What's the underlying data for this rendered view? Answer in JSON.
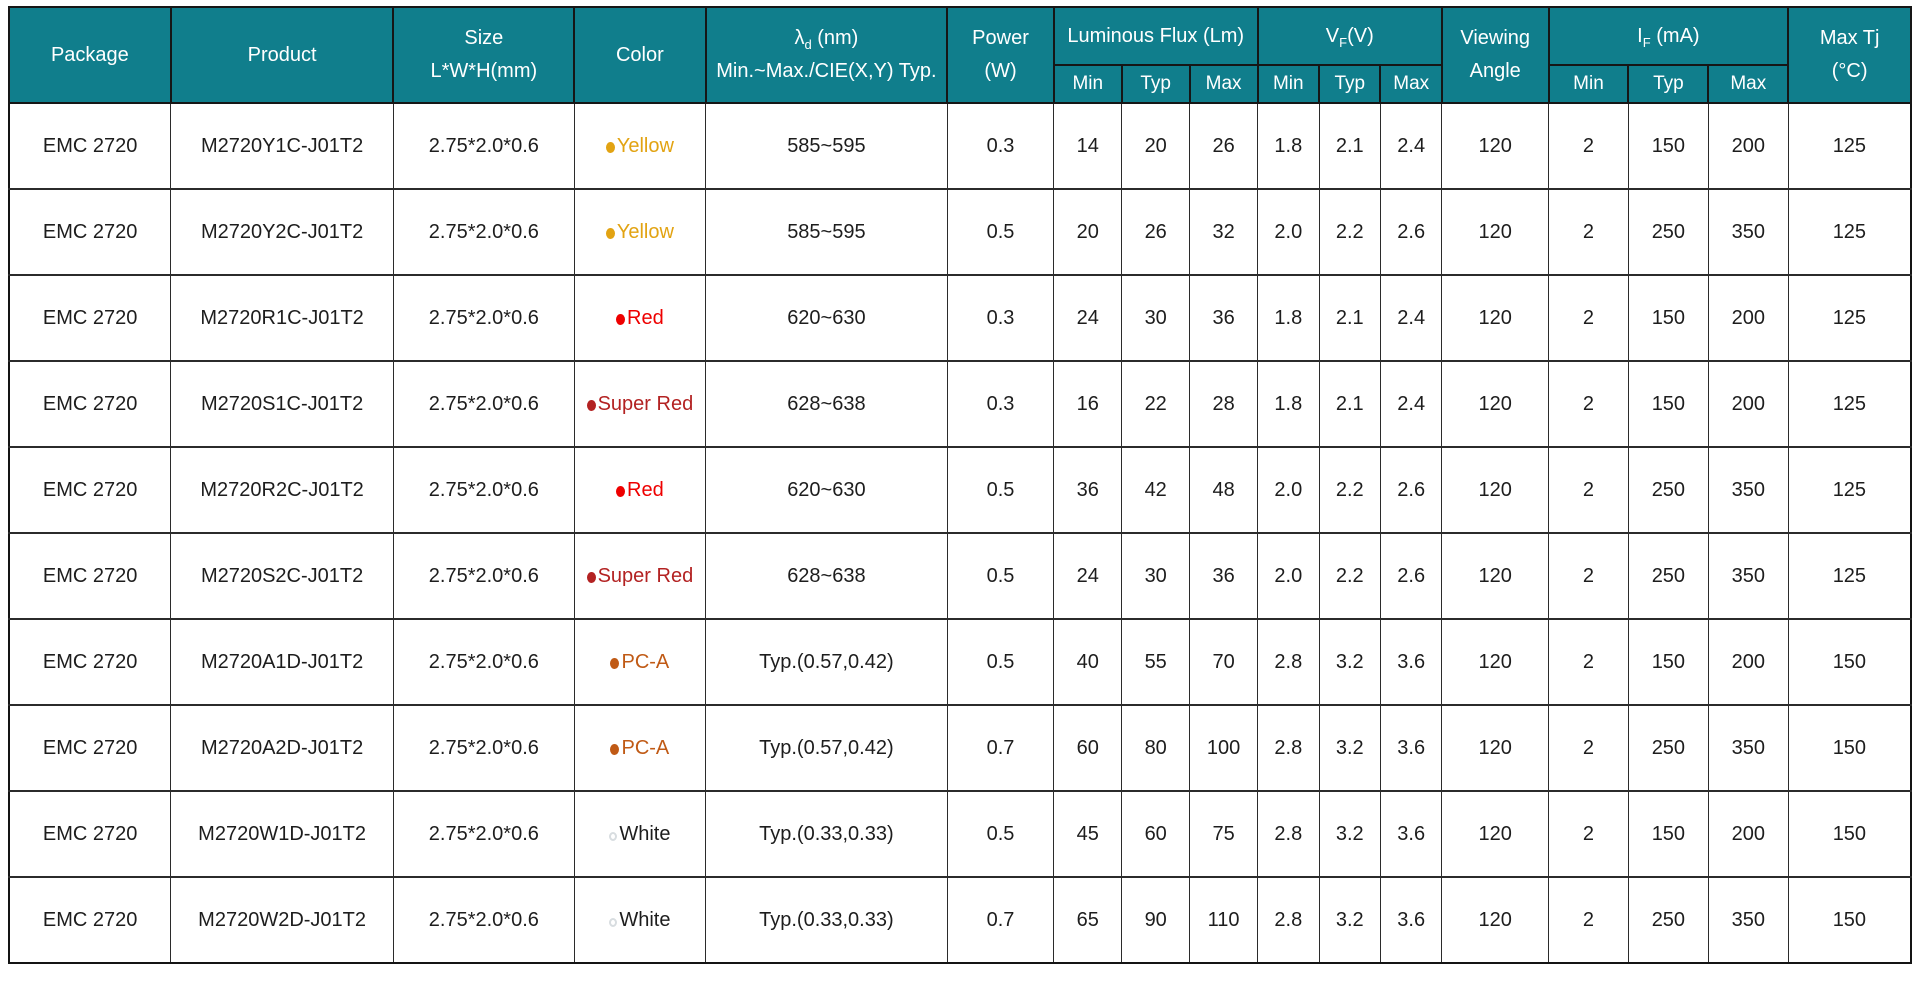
{
  "colors": {
    "header_bg": "#107E8C",
    "header_text": "#FFFFFF",
    "body_text": "#1D1D1D",
    "border": "#2B2B2B"
  },
  "header": {
    "package": "Package",
    "product": "Product",
    "size_line1": "Size",
    "size_line2": "L*W*H(mm)",
    "color": "Color",
    "lambda_symbol": "λ",
    "lambda_sub": "d",
    "lambda_rest": " (nm)",
    "lambda_line2": "Min.~Max./CIE(X,Y) Typ.",
    "power_line1": "Power",
    "power_line2": "(W)",
    "luminous_flux": "Luminous Flux (Lm)",
    "vf_main": "V",
    "vf_sub": "F",
    "vf_rest": "(V)",
    "viewing_line1": "Viewing",
    "viewing_line2": "Angle",
    "if_main": "I",
    "if_sub": "F",
    "if_rest": " (mA)",
    "max_tj_line1": "Max Tj",
    "max_tj_line2": "(°C)",
    "sub_min": "Min",
    "sub_typ": "Typ",
    "sub_max": "Max"
  },
  "color_styles": {
    "Yellow": {
      "dot": "#E2A312",
      "text": "#E2A312",
      "filled": true
    },
    "Red": {
      "dot": "#EE0000",
      "text": "#EE0000",
      "filled": true
    },
    "Super Red": {
      "dot": "#B32222",
      "text": "#B32222",
      "filled": true
    },
    "PC-A": {
      "dot": "#C05A15",
      "text": "#C05A15",
      "filled": true
    },
    "White": {
      "dot": "#D8DDE0",
      "text": "#1D1D1D",
      "filled": false
    }
  },
  "chart_data": {
    "type": "table",
    "title": "",
    "columns": [
      "Package",
      "Product",
      "Size L*W*H(mm)",
      "Color",
      "λd (nm) Min.~Max./CIE(X,Y) Typ.",
      "Power (W)",
      "Luminous Flux Min (Lm)",
      "Luminous Flux Typ (Lm)",
      "Luminous Flux Max (Lm)",
      "VF Min (V)",
      "VF Typ (V)",
      "VF Max (V)",
      "Viewing Angle",
      "IF Min (mA)",
      "IF Typ (mA)",
      "IF Max (mA)",
      "Max Tj (°C)"
    ],
    "rows": [
      [
        "EMC 2720",
        "M2720Y1C-J01T2",
        "2.75*2.0*0.6",
        "Yellow",
        "585~595",
        "0.3",
        "14",
        "20",
        "26",
        "1.8",
        "2.1",
        "2.4",
        "120",
        "2",
        "150",
        "200",
        "125"
      ],
      [
        "EMC 2720",
        "M2720Y2C-J01T2",
        "2.75*2.0*0.6",
        "Yellow",
        "585~595",
        "0.5",
        "20",
        "26",
        "32",
        "2.0",
        "2.2",
        "2.6",
        "120",
        "2",
        "250",
        "350",
        "125"
      ],
      [
        "EMC 2720",
        "M2720R1C-J01T2",
        "2.75*2.0*0.6",
        "Red",
        "620~630",
        "0.3",
        "24",
        "30",
        "36",
        "1.8",
        "2.1",
        "2.4",
        "120",
        "2",
        "150",
        "200",
        "125"
      ],
      [
        "EMC 2720",
        "M2720S1C-J01T2",
        "2.75*2.0*0.6",
        "Super Red",
        "628~638",
        "0.3",
        "16",
        "22",
        "28",
        "1.8",
        "2.1",
        "2.4",
        "120",
        "2",
        "150",
        "200",
        "125"
      ],
      [
        "EMC 2720",
        "M2720R2C-J01T2",
        "2.75*2.0*0.6",
        "Red",
        "620~630",
        "0.5",
        "36",
        "42",
        "48",
        "2.0",
        "2.2",
        "2.6",
        "120",
        "2",
        "250",
        "350",
        "125"
      ],
      [
        "EMC 2720",
        "M2720S2C-J01T2",
        "2.75*2.0*0.6",
        "Super Red",
        "628~638",
        "0.5",
        "24",
        "30",
        "36",
        "2.0",
        "2.2",
        "2.6",
        "120",
        "2",
        "250",
        "350",
        "125"
      ],
      [
        "EMC 2720",
        "M2720A1D-J01T2",
        "2.75*2.0*0.6",
        "PC-A",
        "Typ.(0.57,0.42)",
        "0.5",
        "40",
        "55",
        "70",
        "2.8",
        "3.2",
        "3.6",
        "120",
        "2",
        "150",
        "200",
        "150"
      ],
      [
        "EMC 2720",
        "M2720A2D-J01T2",
        "2.75*2.0*0.6",
        "PC-A",
        "Typ.(0.57,0.42)",
        "0.7",
        "60",
        "80",
        "100",
        "2.8",
        "3.2",
        "3.6",
        "120",
        "2",
        "250",
        "350",
        "150"
      ],
      [
        "EMC 2720",
        "M2720W1D-J01T2",
        "2.75*2.0*0.6",
        "White",
        "Typ.(0.33,0.33)",
        "0.5",
        "45",
        "60",
        "75",
        "2.8",
        "3.2",
        "3.6",
        "120",
        "2",
        "150",
        "200",
        "150"
      ],
      [
        "EMC 2720",
        "M2720W2D-J01T2",
        "2.75*2.0*0.6",
        "White",
        "Typ.(0.33,0.33)",
        "0.7",
        "65",
        "90",
        "110",
        "2.8",
        "3.2",
        "3.6",
        "120",
        "2",
        "250",
        "350",
        "150"
      ]
    ]
  }
}
